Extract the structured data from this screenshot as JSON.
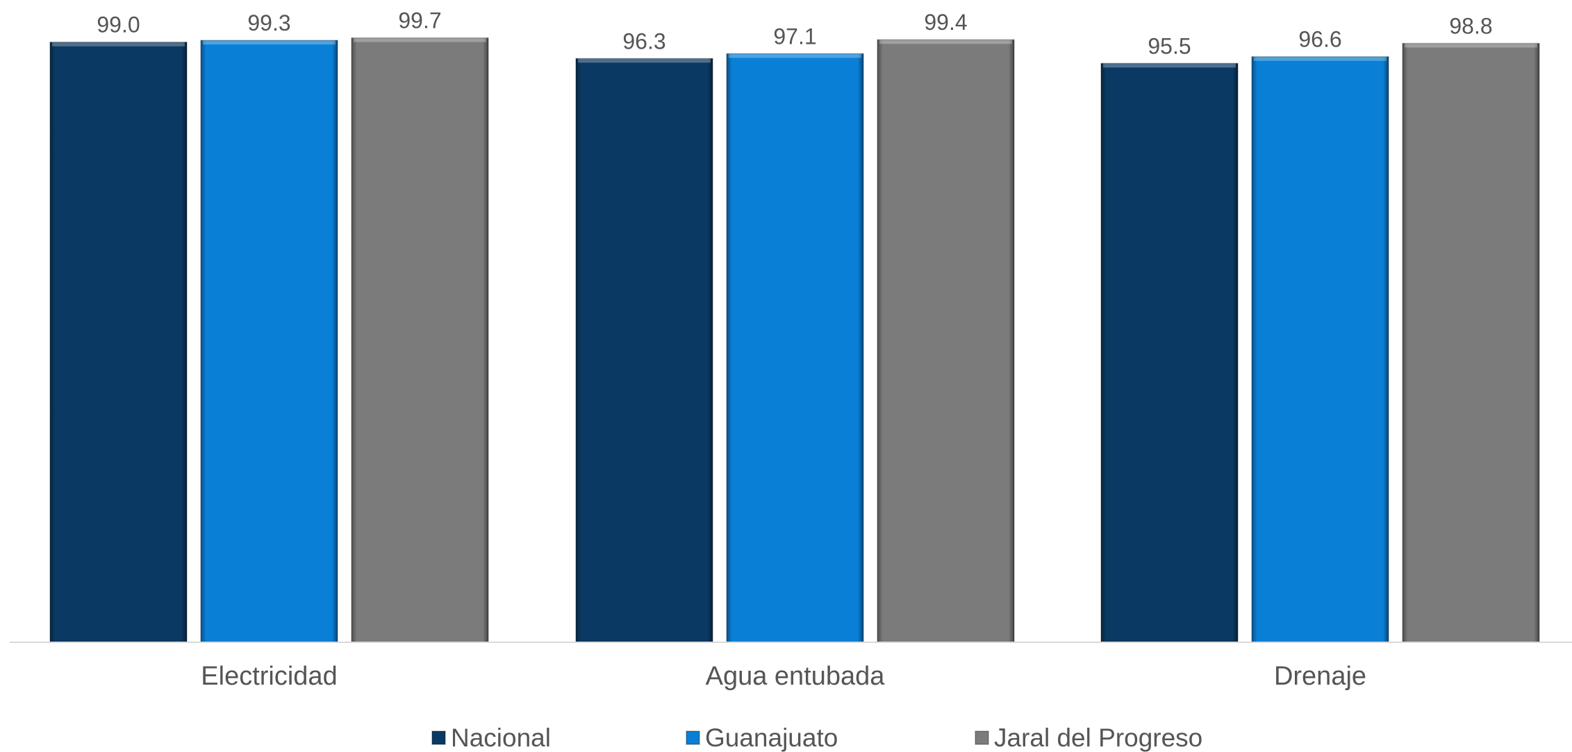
{
  "chart_data": {
    "type": "bar",
    "title": "",
    "xlabel": "",
    "ylabel": "",
    "categories": [
      "Electricidad",
      "Agua entubada",
      "Drenaje"
    ],
    "series": [
      {
        "name": "Nacional",
        "values": [
          99.0,
          96.3,
          95.5
        ],
        "color": "#0a3a63",
        "value_labels": [
          "99.0",
          "96.3",
          "95.5"
        ]
      },
      {
        "name": "Guanajuato",
        "values": [
          99.3,
          97.1,
          96.6
        ],
        "color": "#0a7fd6",
        "value_labels": [
          "99.3",
          "97.1",
          "96.6"
        ]
      },
      {
        "name": "Jaral del Progreso",
        "values": [
          99.7,
          99.4,
          98.8
        ],
        "color": "#7b7b7b",
        "value_labels": [
          "99.7",
          "99.4",
          "98.8"
        ]
      }
    ],
    "ylim": [
      0,
      100
    ],
    "grid": false,
    "legend": "bottom"
  }
}
